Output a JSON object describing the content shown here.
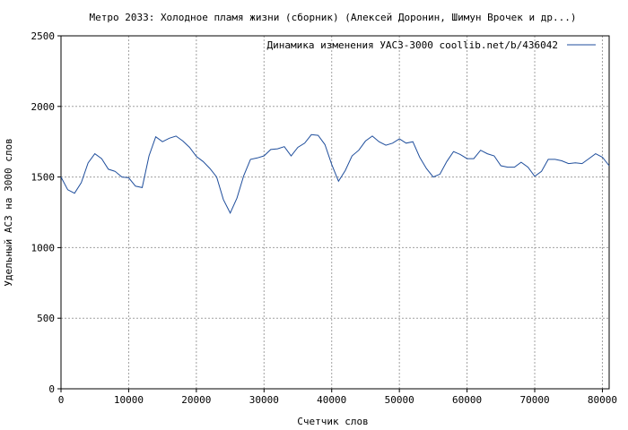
{
  "chart_data": {
    "type": "line",
    "title": "Метро 2033: Холодное пламя жизни (сборник) (Алексей Доронин, Шимун Врочек и др...)",
    "xlabel": "Счетчик слов",
    "ylabel": "Удельный АСЗ на 3000 слов",
    "xlim": [
      0,
      81000
    ],
    "ylim": [
      0,
      2500
    ],
    "xticks": [
      0,
      10000,
      20000,
      30000,
      40000,
      50000,
      60000,
      70000,
      80000
    ],
    "yticks": [
      0,
      500,
      1000,
      1500,
      2000,
      2500
    ],
    "grid": true,
    "legend_position": "top-right",
    "colors": {
      "line": "#1f4e9c",
      "grid": "#a0a0a0",
      "axes": "#000000"
    },
    "series": [
      {
        "name": "Динамика изменения УАСЗ-3000  coollib.net/b/436042",
        "x": [
          0,
          1000,
          2000,
          3000,
          4000,
          5000,
          6000,
          7000,
          8000,
          9000,
          10000,
          11000,
          12000,
          13000,
          14000,
          15000,
          16000,
          17000,
          18000,
          19000,
          20000,
          21000,
          22000,
          23000,
          24000,
          25000,
          26000,
          27000,
          28000,
          29000,
          30000,
          31000,
          32000,
          33000,
          34000,
          35000,
          36000,
          37000,
          38000,
          39000,
          40000,
          41000,
          42000,
          43000,
          44000,
          45000,
          46000,
          47000,
          48000,
          49000,
          50000,
          51000,
          52000,
          53000,
          54000,
          55000,
          56000,
          57000,
          58000,
          59000,
          60000,
          61000,
          62000,
          63000,
          64000,
          65000,
          66000,
          67000,
          68000,
          69000,
          70000,
          71000,
          72000,
          73000,
          74000,
          75000,
          76000,
          77000,
          78000,
          79000,
          80000,
          81000
        ],
        "values": [
          1500,
          1410,
          1385,
          1460,
          1600,
          1665,
          1630,
          1555,
          1540,
          1500,
          1495,
          1435,
          1425,
          1650,
          1785,
          1750,
          1775,
          1790,
          1755,
          1710,
          1645,
          1610,
          1560,
          1500,
          1340,
          1245,
          1350,
          1510,
          1625,
          1635,
          1650,
          1695,
          1700,
          1715,
          1650,
          1710,
          1740,
          1800,
          1795,
          1730,
          1590,
          1470,
          1545,
          1650,
          1690,
          1755,
          1790,
          1750,
          1725,
          1740,
          1770,
          1740,
          1750,
          1640,
          1560,
          1500,
          1520,
          1610,
          1680,
          1660,
          1630,
          1630,
          1690,
          1665,
          1650,
          1580,
          1570,
          1570,
          1605,
          1570,
          1505,
          1540,
          1625,
          1625,
          1615,
          1595,
          1600,
          1595,
          1630,
          1665,
          1640,
          1580
        ]
      }
    ]
  }
}
